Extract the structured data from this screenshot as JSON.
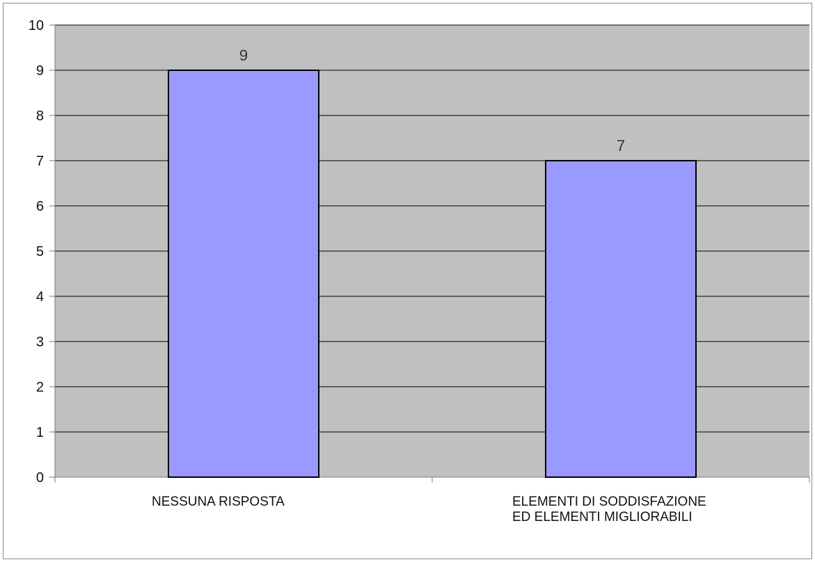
{
  "chart_data": {
    "type": "bar",
    "categories": [
      "NESSUNA RISPOSTA",
      "ELEMENTI DI SODDISFAZIONE ED ELEMENTI MIGLIORABILI"
    ],
    "series": [
      {
        "values": [
          9,
          7
        ]
      }
    ],
    "data_labels": [
      "9",
      "7"
    ],
    "ylim": [
      0,
      10
    ],
    "yticks": [
      "0",
      "1",
      "2",
      "3",
      "4",
      "5",
      "6",
      "7",
      "8",
      "9",
      "10"
    ],
    "title": "",
    "xlabel": "",
    "ylabel": "",
    "grid": true,
    "legend": "none",
    "colors": {
      "plot_background": "#c0c0c0",
      "bar_fill": "#9999ff",
      "bar_stroke": "#000000",
      "gridline": "#000000"
    }
  }
}
